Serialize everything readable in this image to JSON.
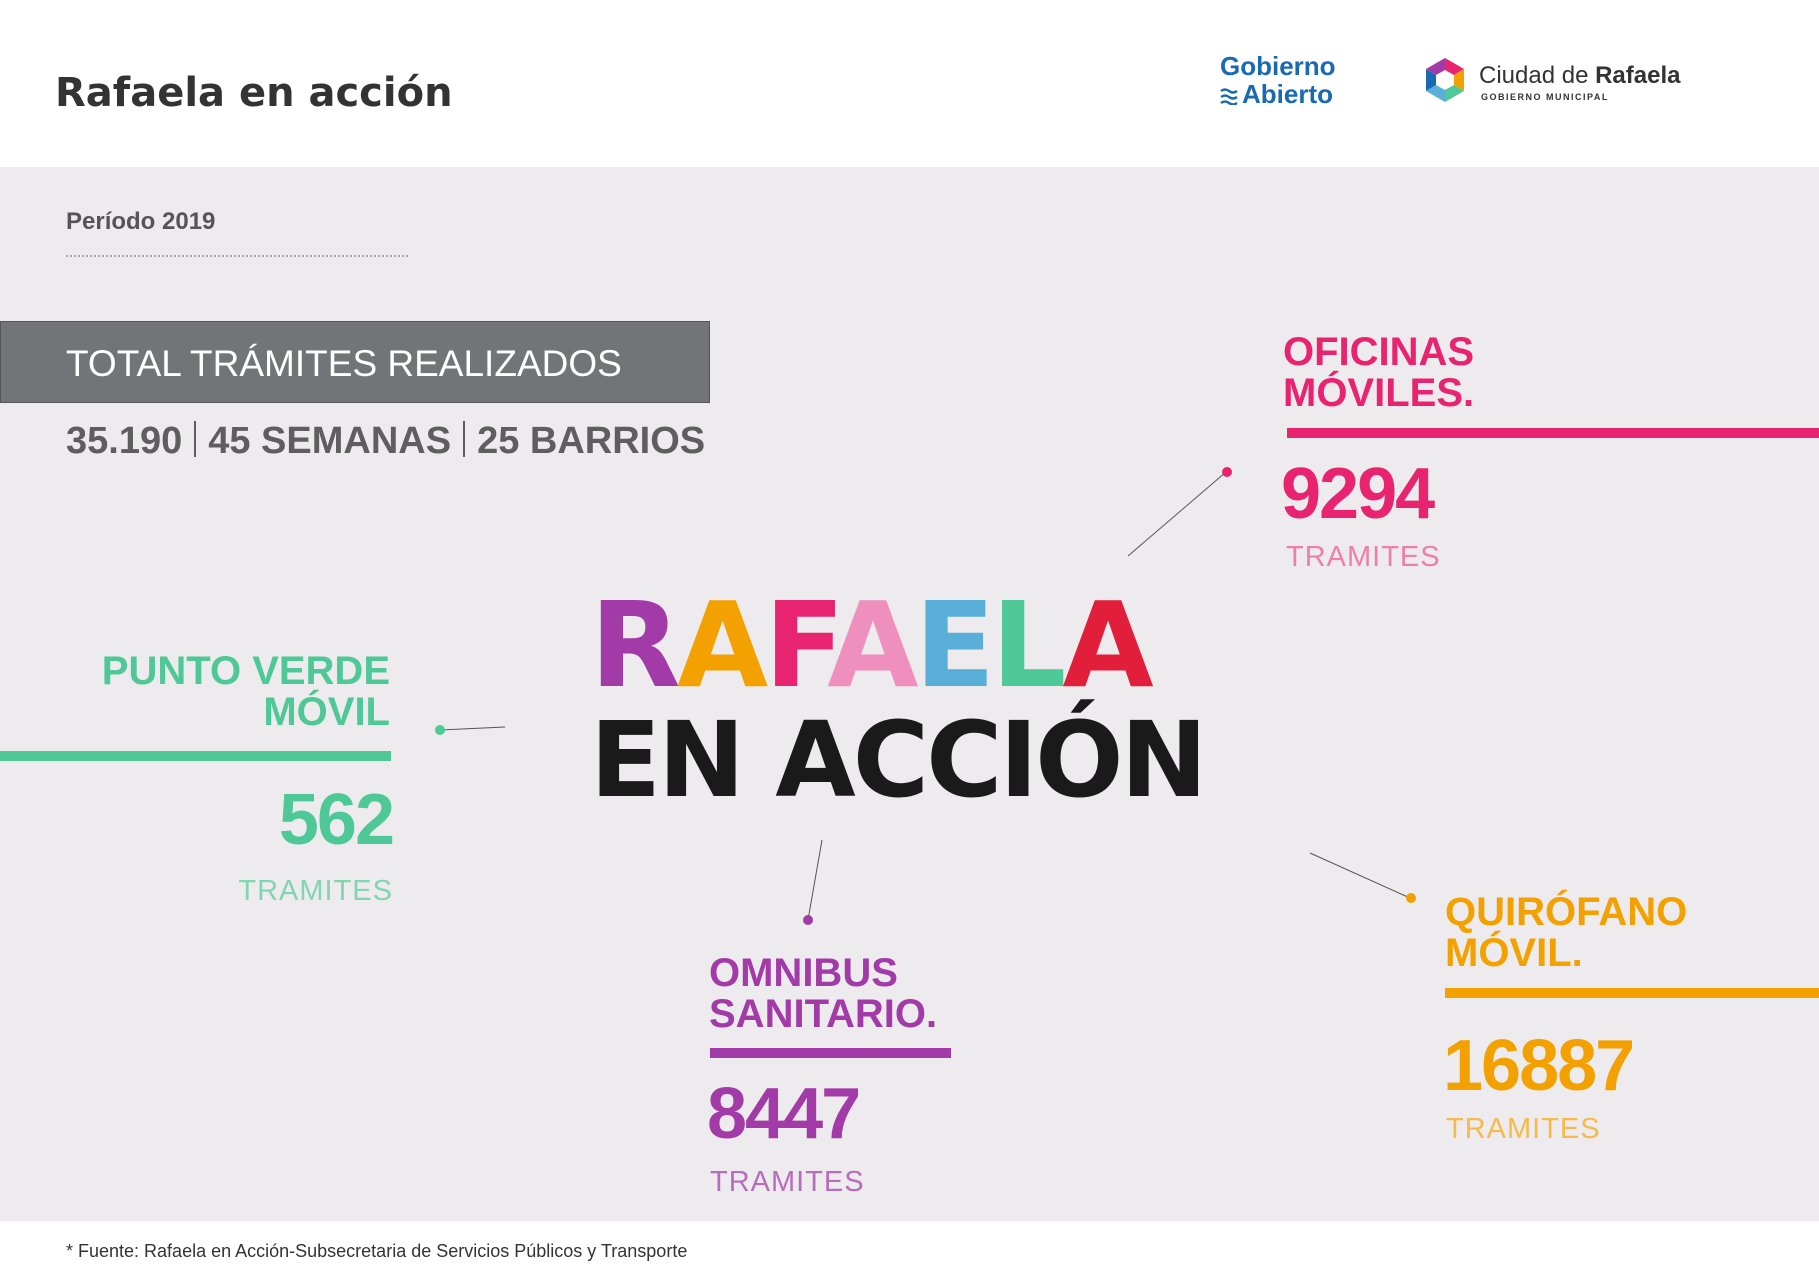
{
  "header": {
    "title": "Rafaela en acción",
    "logo_gobierno_abierto": {
      "line1": "Gobierno",
      "line2": "Abierto"
    },
    "logo_ciudad": {
      "name_regular": "Ciudad de",
      "name_bold": "Rafaela",
      "subtitle": "GOBIERNO MUNICIPAL"
    }
  },
  "period": "Período 2019",
  "total": {
    "title": "TOTAL TRÁMITES REALIZADOS",
    "count": "35.190",
    "weeks": "45 SEMANAS",
    "neighborhoods": "25 BARRIOS"
  },
  "center_logo": {
    "letters": [
      {
        "char": "R",
        "color": "#a23aa8"
      },
      {
        "char": "A",
        "color": "#f2a100"
      },
      {
        "char": "F",
        "color": "#e8236f"
      },
      {
        "char": "A",
        "color": "#ee8fbd"
      },
      {
        "char": "E",
        "color": "#5aafd9"
      },
      {
        "char": "L",
        "color": "#4ec896"
      },
      {
        "char": "A",
        "color": "#e11f3a"
      }
    ],
    "line2": "EN ACCIÓN"
  },
  "categories": {
    "oficinas": {
      "line1": "OFICINAS",
      "line2": "MÓVILES.",
      "value": "9294",
      "unit": "TRAMITES",
      "color": "#e8236f"
    },
    "punto_verde": {
      "line1": "PUNTO VERDE",
      "line2": "MÓVIL",
      "value": "562",
      "unit": "TRAMITES",
      "color": "#4ec896"
    },
    "omnibus": {
      "line1": "OMNIBUS",
      "line2": "SANITARIO.",
      "value": "8447",
      "unit": "TRAMITES",
      "color": "#a23aa8"
    },
    "quirofano": {
      "line1": "QUIRÓFANO",
      "line2": "MÓVIL.",
      "value": "16887",
      "unit": "TRAMITES",
      "color": "#f2a100"
    }
  },
  "footnote": "* Fuente: Rafaela en Acción-Subsecretaria de Servicios Públicos y Transporte"
}
